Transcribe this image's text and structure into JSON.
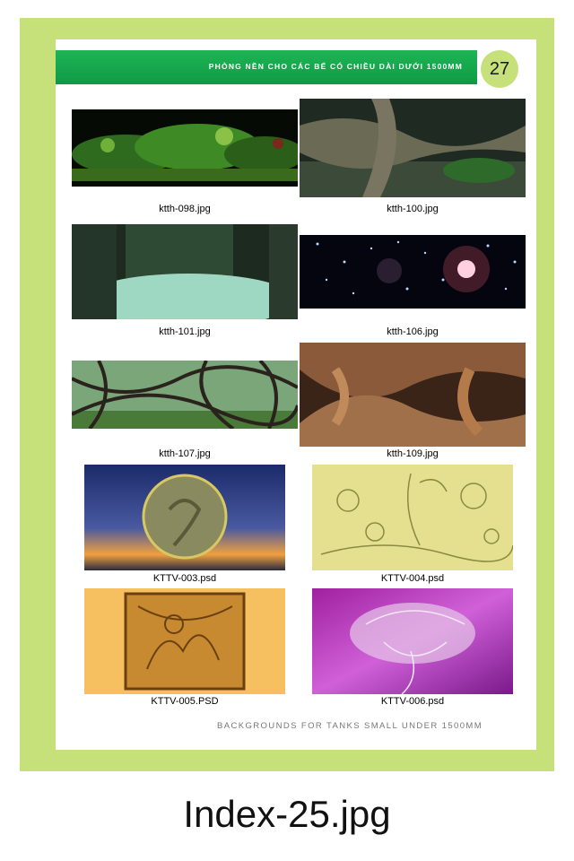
{
  "header": {
    "title": "PHÒNG NỀN CHO CÁC BỂ CÓ CHIỀU DÀI DƯỚI 1500MM",
    "page_number": "27"
  },
  "images": [
    {
      "name": "ktth-098.jpg"
    },
    {
      "name": "ktth-100.jpg"
    },
    {
      "name": "ktth-101.jpg"
    },
    {
      "name": "ktth-106.jpg"
    },
    {
      "name": "ktth-107.jpg"
    },
    {
      "name": "ktth-109.jpg"
    },
    {
      "name": "KTTV-003.psd"
    },
    {
      "name": "KTTV-004.psd"
    },
    {
      "name": "KTTV-005.PSD"
    },
    {
      "name": "KTTV-006.psd"
    }
  ],
  "footer": "BACKGROUNDS FOR TANKS SMALL UNDER 1500MM",
  "caption_below": "Index-25.jpg",
  "colors": {
    "frame": "#c6e07a",
    "banner": "#14a64c"
  }
}
